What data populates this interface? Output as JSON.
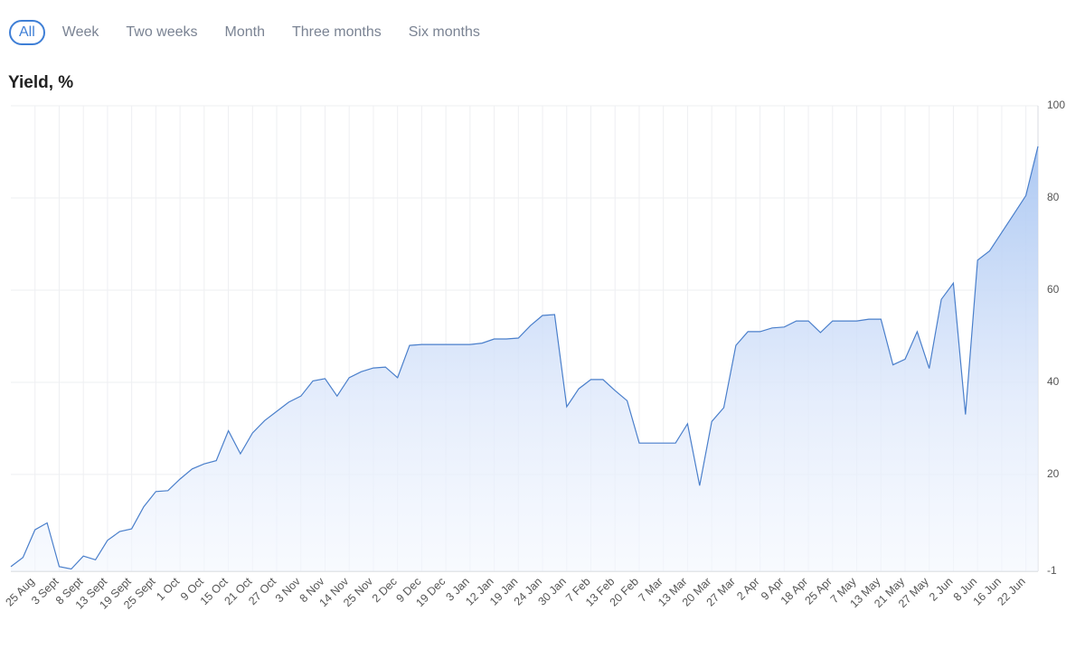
{
  "tabs": [
    "All",
    "Week",
    "Two weeks",
    "Month",
    "Three months",
    "Six months"
  ],
  "chart_data": {
    "type": "line",
    "title": "Yield, %",
    "categories": [
      null,
      null,
      "25 Aug",
      null,
      "3 Sept",
      null,
      "8 Sept",
      null,
      "13 Sept",
      null,
      "19 Sept",
      null,
      "25 Sept",
      null,
      "1 Oct",
      null,
      "9 Oct",
      null,
      "15 Oct",
      null,
      "21 Oct",
      null,
      "27 Oct",
      null,
      "3 Nov",
      null,
      "8 Nov",
      null,
      "14 Nov",
      null,
      "25 Nov",
      null,
      "2 Dec",
      null,
      "9 Dec",
      null,
      "19 Dec",
      null,
      "3 Jan",
      null,
      "12 Jan",
      null,
      "19 Jan",
      null,
      "24 Jan",
      null,
      "30 Jan",
      null,
      "7 Feb",
      null,
      "13 Feb",
      null,
      "20 Feb",
      null,
      "7 Mar",
      null,
      "13 Mar",
      null,
      "20 Mar",
      null,
      "27 Mar",
      null,
      "2 Apr",
      null,
      "9 Apr",
      null,
      "18 Apr",
      null,
      "25 Apr",
      null,
      "7 May",
      null,
      "13 May",
      null,
      "21 May",
      null,
      "27 May",
      null,
      "2 Jun",
      null,
      "8 Jun",
      null,
      "16 Jun",
      null,
      "22 Jun",
      null
    ],
    "values": [
      0,
      2,
      8,
      9.5,
      0,
      -0.5,
      2.3,
      1.5,
      5.7,
      7.6,
      8.2,
      13,
      16.3,
      16.5,
      19,
      21.2,
      22.3,
      23,
      29.5,
      24.5,
      29,
      31.7,
      33.7,
      35.7,
      37,
      40.3,
      40.8,
      37,
      41,
      42.3,
      43.1,
      43.3,
      41,
      48,
      48.2,
      48.2,
      48.2,
      48.2,
      48.2,
      48.5,
      49.4,
      49.4,
      49.6,
      52.3,
      54.5,
      54.7,
      34.7,
      38.6,
      40.6,
      40.6,
      38.2,
      36,
      26.8,
      26.8,
      26.8,
      26.8,
      31,
      17.6,
      31.5,
      34.5,
      48,
      51,
      51,
      51.8,
      52,
      53.3,
      53.3,
      50.8,
      53.3,
      53.3,
      53.3,
      53.7,
      53.7,
      43.8,
      45,
      51,
      43,
      58,
      61.5,
      33,
      66.5,
      68.5,
      72.5,
      76.5,
      80.5,
      91.2
    ],
    "color": "#4a7fcb",
    "ylim": [
      -1,
      100
    ],
    "yticks": [
      -1,
      20,
      40,
      60,
      80,
      100
    ],
    "grid": true
  }
}
